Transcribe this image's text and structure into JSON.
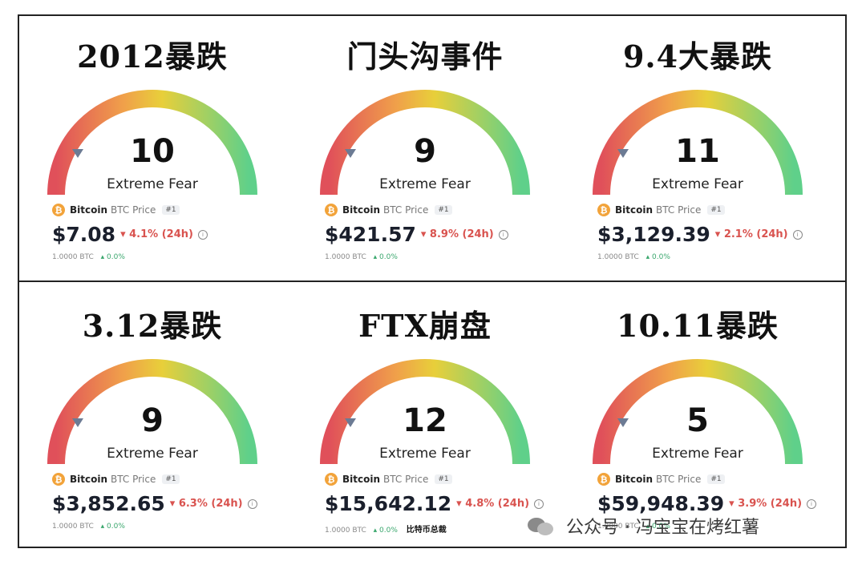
{
  "panels": [
    {
      "title": "2012暴跌",
      "value": "10",
      "label": "Extreme Fear",
      "coin": "Bitcoin",
      "ticker": "BTC Price",
      "rank": "#1",
      "price": "$7.08",
      "change": "▾ 4.1% (24h)",
      "btc": "1.0000 BTC",
      "btc_change": "▴ 0.0%"
    },
    {
      "title": "门头沟事件",
      "value": "9",
      "label": "Extreme Fear",
      "coin": "Bitcoin",
      "ticker": "BTC Price",
      "rank": "#1",
      "price": "$421.57",
      "change": "▾ 8.9% (24h)",
      "btc": "1.0000 BTC",
      "btc_change": "▴ 0.0%"
    },
    {
      "title": "9.4大暴跌",
      "value": "11",
      "label": "Extreme Fear",
      "coin": "Bitcoin",
      "ticker": "BTC Price",
      "rank": "#1",
      "price": "$3,129.39",
      "change": "▾ 2.1% (24h)",
      "btc": "1.0000 BTC",
      "btc_change": "▴ 0.0%"
    },
    {
      "title": "3.12暴跌",
      "value": "9",
      "label": "Extreme Fear",
      "coin": "Bitcoin",
      "ticker": "BTC Price",
      "rank": "#1",
      "price": "$3,852.65",
      "change": "▾ 6.3% (24h)",
      "btc": "1.0000 BTC",
      "btc_change": "▴ 0.0%"
    },
    {
      "title": "FTX崩盘",
      "value": "12",
      "label": "Extreme Fear",
      "coin": "Bitcoin",
      "ticker": "BTC Price",
      "rank": "#1",
      "price": "$15,642.12",
      "change": "▾ 4.8% (24h)",
      "btc": "1.0000 BTC",
      "btc_change": "▴ 0.0%",
      "extra": "比特币总裁"
    },
    {
      "title": "10.11暴跌",
      "value": "5",
      "label": "Extreme Fear",
      "coin": "Bitcoin",
      "ticker": "BTC Price",
      "rank": "#1",
      "price": "$59,948.39",
      "change": "▾ 3.9% (24h)",
      "btc": "1.0000 BTC",
      "btc_change": "▴ 0.0%"
    }
  ],
  "watermark": "公众号 · 冯宝宝在烤红薯",
  "colors": {
    "gauge_red": "#e0505a",
    "gauge_orange": "#f0a04a",
    "gauge_yellow": "#e8cf3a",
    "gauge_green": "#5fd08a",
    "change_red": "#d9534f",
    "coin_orange": "#f2a33a"
  }
}
